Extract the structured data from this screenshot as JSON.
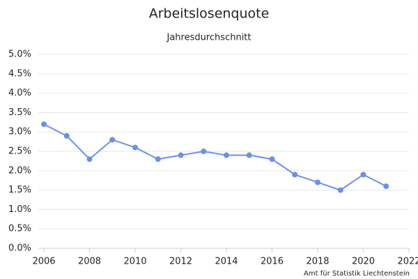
{
  "chart_data": {
    "type": "line",
    "title": "Arbeitslosenquote",
    "subtitle": "Jahresdurchschnitt",
    "source": "Amt für Statistik Liechtenstein",
    "x": [
      2006,
      2007,
      2008,
      2009,
      2010,
      2011,
      2012,
      2013,
      2014,
      2015,
      2016,
      2017,
      2018,
      2019,
      2020,
      2021
    ],
    "series": [
      {
        "color": "#6b8ff0",
        "values": [
          3.2,
          2.9,
          2.3,
          2.8,
          2.6,
          2.3,
          2.4,
          2.5,
          2.4,
          2.4,
          2.3,
          1.9,
          1.7,
          1.5,
          1.9,
          1.6
        ]
      }
    ],
    "xlim": [
      2006,
      2022
    ],
    "xticks": [
      2006,
      2008,
      2010,
      2012,
      2014,
      2016,
      2018,
      2020,
      2022
    ],
    "ylim": [
      0,
      5
    ],
    "yticks": [
      {
        "value": 0,
        "label": "0.0%"
      },
      {
        "value": 0.5,
        "label": "0.5%"
      },
      {
        "value": 1,
        "label": "1.0%"
      },
      {
        "value": 1.5,
        "label": "1.5%"
      },
      {
        "value": 2,
        "label": "2.0%"
      },
      {
        "value": 2.5,
        "label": "2.5%"
      },
      {
        "value": 3,
        "label": "3.0%"
      },
      {
        "value": 3.5,
        "label": "3.5%"
      },
      {
        "value": 4,
        "label": "4.0%"
      },
      {
        "value": 4.5,
        "label": "4.5%"
      },
      {
        "value": 5,
        "label": "5.0%"
      }
    ],
    "grid": true
  }
}
